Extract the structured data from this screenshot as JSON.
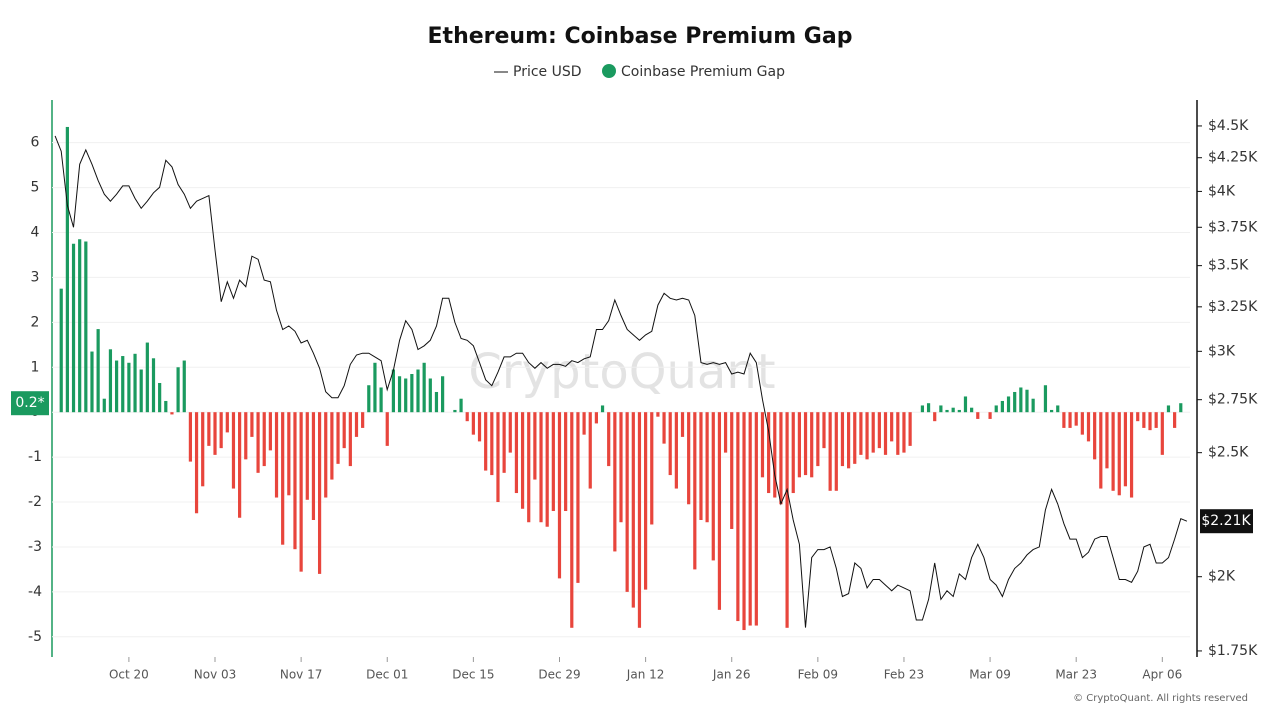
{
  "chart_data": {
    "type": "bar_line",
    "title": "Ethereum: Coinbase Premium Gap",
    "watermark": "CryptoQuant",
    "credit": "© CryptoQuant. All rights reserved",
    "grid": true,
    "legend": "top",
    "categories": [
      null,
      null,
      null,
      null,
      null,
      null,
      null,
      null,
      null,
      null,
      null,
      null,
      "Oct 20",
      null,
      null,
      null,
      null,
      null,
      null,
      null,
      null,
      null,
      null,
      null,
      null,
      null,
      "Nov 03",
      null,
      null,
      null,
      null,
      null,
      null,
      null,
      null,
      null,
      null,
      null,
      null,
      null,
      "Nov 17",
      null,
      null,
      null,
      null,
      null,
      null,
      null,
      null,
      null,
      null,
      null,
      null,
      null,
      "Dec 01",
      null,
      null,
      null,
      null,
      null,
      null,
      null,
      null,
      null,
      null,
      null,
      null,
      null,
      "Dec 15",
      null,
      null,
      null,
      null,
      null,
      null,
      null,
      null,
      null,
      null,
      null,
      null,
      null,
      "Dec 29",
      null,
      null,
      null,
      null,
      null,
      null,
      null,
      null,
      null,
      null,
      null,
      null,
      null,
      "Jan 12",
      null,
      null,
      null,
      null,
      null,
      null,
      null,
      null,
      null,
      null,
      null,
      null,
      null,
      "Jan 26",
      null,
      null,
      null,
      null,
      null,
      null,
      null,
      null,
      null,
      null,
      null,
      null,
      null,
      "Feb 09",
      null,
      null,
      null,
      null,
      null,
      null,
      null,
      null,
      null,
      null,
      null,
      null,
      null,
      "Feb 23",
      null,
      null,
      null,
      null,
      null,
      null,
      null,
      null,
      null,
      null,
      null,
      null,
      null,
      "Mar 09",
      null,
      null,
      null,
      null,
      null,
      null,
      null,
      null,
      null,
      null,
      null,
      null,
      null,
      "Mar 23",
      null,
      null,
      null,
      null,
      null,
      null,
      null,
      null,
      null,
      null,
      null,
      null,
      null,
      "Apr 06",
      null,
      null,
      null,
      null
    ],
    "ylim": [
      -5.45,
      6.95
    ],
    "yticks": [
      -5,
      -4,
      -3,
      -2,
      -1,
      0,
      1,
      2,
      3,
      4,
      5,
      6
    ],
    "y2lim": [
      1731,
      4715
    ],
    "y2_log": true,
    "y2ticks": [
      {
        "value": 1750,
        "label": "$1.75K"
      },
      {
        "value": 2000,
        "label": "$2K"
      },
      {
        "value": 2500,
        "label": "$2.5K"
      },
      {
        "value": 2750,
        "label": "$2.75K"
      },
      {
        "value": 3000,
        "label": "$3K"
      },
      {
        "value": 3250,
        "label": "$3.25K"
      },
      {
        "value": 3500,
        "label": "$3.5K"
      },
      {
        "value": 3750,
        "label": "$3.75K"
      },
      {
        "value": 4000,
        "label": "$4K"
      },
      {
        "value": 4250,
        "label": "$4.25K"
      },
      {
        "value": 4500,
        "label": "$4.5K"
      }
    ],
    "y_marker": {
      "value": 0.2,
      "label": "0.2*",
      "color": "#1a9a5f"
    },
    "y2_marker": {
      "value": 2210,
      "label": "$2.21K",
      "color": "#111111"
    },
    "series": [
      {
        "name": "Price USD",
        "kind": "line",
        "axis": "y2",
        "color": "#111111",
        "values": [
          4420,
          4300,
          3900,
          3750,
          4200,
          4310,
          4200,
          4080,
          3980,
          3930,
          3980,
          4040,
          4040,
          3950,
          3880,
          3930,
          3990,
          4030,
          4230,
          4180,
          4050,
          3980,
          3880,
          3930,
          3950,
          3970,
          3600,
          3280,
          3400,
          3300,
          3410,
          3370,
          3560,
          3540,
          3410,
          3400,
          3230,
          3120,
          3140,
          3110,
          3045,
          3060,
          2990,
          2910,
          2790,
          2760,
          2760,
          2820,
          2930,
          2980,
          2990,
          2990,
          2970,
          2950,
          2800,
          2900,
          3060,
          3170,
          3120,
          3010,
          3030,
          3060,
          3140,
          3300,
          3300,
          3160,
          3070,
          3060,
          3030,
          2940,
          2850,
          2820,
          2890,
          2970,
          2970,
          2990,
          2990,
          2940,
          2910,
          2940,
          2910,
          2930,
          2930,
          2920,
          2950,
          2940,
          2960,
          2970,
          3120,
          3120,
          3170,
          3290,
          3200,
          3120,
          3090,
          3060,
          3090,
          3110,
          3260,
          3330,
          3300,
          3290,
          3300,
          3290,
          3200,
          2940,
          2930,
          2940,
          2930,
          2940,
          2880,
          2890,
          2880,
          2990,
          2940,
          2750,
          2600,
          2400,
          2280,
          2340,
          2215,
          2120,
          1825,
          2070,
          2100,
          2100,
          2110,
          2030,
          1930,
          1940,
          2050,
          2030,
          1960,
          1990,
          1990,
          1970,
          1950,
          1970,
          1960,
          1950,
          1850,
          1850,
          1920,
          2050,
          1920,
          1950,
          1930,
          2010,
          1990,
          2070,
          2120,
          2070,
          1990,
          1970,
          1930,
          1990,
          2030,
          2050,
          2080,
          2100,
          2110,
          2255,
          2340,
          2280,
          2200,
          2140,
          2140,
          2070,
          2090,
          2140,
          2150,
          2150,
          2070,
          1990,
          1990,
          1980,
          2020,
          2110,
          2120,
          2050,
          2050,
          2070,
          2140,
          2220,
          2210
        ]
      },
      {
        "name": "Coinbase Premium Gap",
        "kind": "bar",
        "axis": "y",
        "color": "#1a9a5f",
        "negative_color": "#e8453c",
        "values": [
          0,
          2.75,
          6.35,
          3.75,
          3.85,
          3.8,
          1.35,
          1.85,
          0.3,
          1.4,
          1.15,
          1.25,
          1.1,
          1.3,
          0.95,
          1.55,
          1.2,
          0.65,
          0.25,
          -0.05,
          1.0,
          1.15,
          -1.1,
          -2.25,
          -1.65,
          -0.75,
          -0.95,
          -0.8,
          -0.45,
          -1.7,
          -2.35,
          -1.05,
          -0.55,
          -1.35,
          -1.2,
          -0.85,
          -1.9,
          -2.95,
          -1.85,
          -3.05,
          -3.55,
          -1.95,
          -2.4,
          -3.6,
          -1.9,
          -1.5,
          -1.15,
          -0.8,
          -1.2,
          -0.55,
          -0.35,
          0.6,
          1.1,
          0.55,
          -0.75,
          0.95,
          0.8,
          0.75,
          0.85,
          0.95,
          1.1,
          0.75,
          0.45,
          0.8,
          0,
          0.05,
          0.3,
          -0.2,
          -0.5,
          -0.65,
          -1.3,
          -1.4,
          -2.0,
          -1.35,
          -0.9,
          -1.8,
          -2.15,
          -2.45,
          -1.5,
          -2.45,
          -2.55,
          -2.2,
          -3.7,
          -2.2,
          -4.8,
          -3.8,
          -0.5,
          -1.7,
          -0.25,
          0.15,
          -1.2,
          -3.1,
          -2.45,
          -4.0,
          -4.35,
          -4.8,
          -3.95,
          -2.5,
          -0.1,
          -0.7,
          -1.4,
          -1.7,
          -0.55,
          -2.05,
          -3.5,
          -2.4,
          -2.45,
          -3.3,
          -4.4,
          -0.9,
          -2.6,
          -4.65,
          -4.85,
          -4.75,
          -4.75,
          -1.45,
          -1.8,
          -1.9,
          -2.05,
          -4.8,
          -1.8,
          -1.45,
          -1.4,
          -1.45,
          -1.2,
          -0.8,
          -1.75,
          -1.75,
          -1.2,
          -1.25,
          -1.15,
          -0.95,
          -1.05,
          -0.9,
          -0.8,
          -0.95,
          -0.65,
          -0.95,
          -0.9,
          -0.75,
          0,
          0.15,
          0.2,
          -0.2,
          0.15,
          0.05,
          0.1,
          0.05,
          0.35,
          0.1,
          -0.15,
          0,
          -0.15,
          0.15,
          0.25,
          0.35,
          0.45,
          0.55,
          0.5,
          0.3,
          0,
          0.6,
          0.05,
          0.15,
          -0.35,
          -0.35,
          -0.3,
          -0.5,
          -0.65,
          -1.05,
          -1.7,
          -1.25,
          -1.75,
          -1.85,
          -1.65,
          -1.9,
          -0.2,
          -0.35,
          -0.4,
          -0.35,
          -0.95,
          0.15,
          -0.35,
          0.2,
          0
        ]
      }
    ]
  }
}
